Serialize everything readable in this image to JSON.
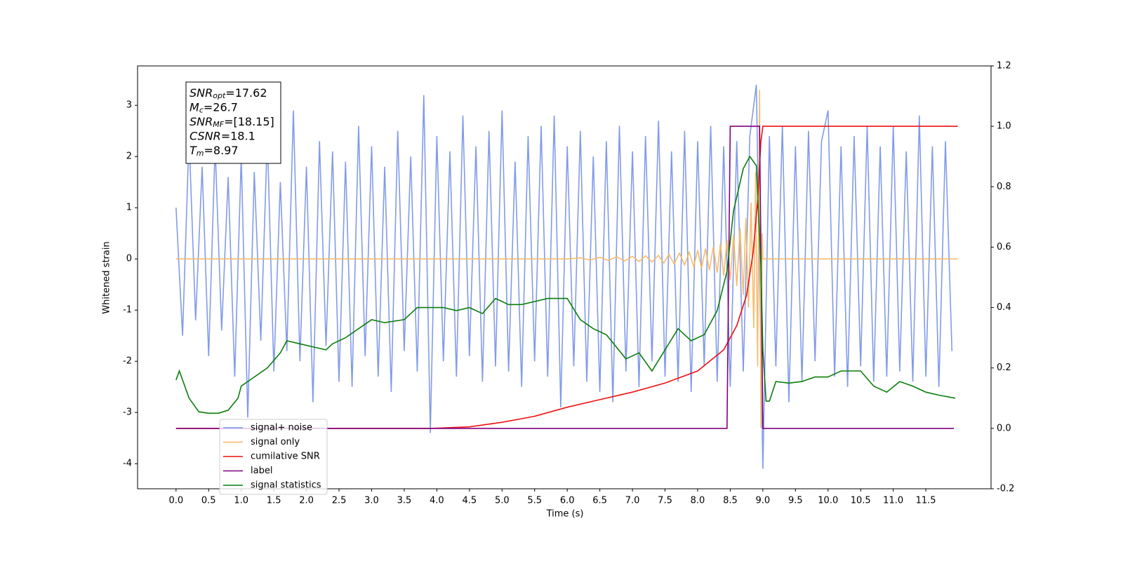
{
  "chart_data": {
    "type": "line",
    "xlabel": "Time (s)",
    "ylabel": "Whitened strain",
    "xlim": [
      -0.59,
      12.5
    ],
    "ylim": [
      -4.49,
      3.77
    ],
    "y2lim": [
      -0.2,
      1.2
    ],
    "xticks": [
      {
        "value": 0,
        "label": "0.0"
      },
      0.5,
      {
        "value": 1,
        "label": "1.0"
      },
      1.5,
      {
        "value": 2,
        "label": "2.0"
      },
      2.5,
      {
        "value": 3,
        "label": "3.0"
      },
      3.5,
      {
        "value": 4,
        "label": "4.0"
      },
      4.5,
      {
        "value": 5,
        "label": "5.0"
      },
      5.5,
      {
        "value": 6,
        "label": "6.0"
      },
      6.5,
      {
        "value": 7,
        "label": "7.0"
      },
      7.5,
      {
        "value": 8,
        "label": "8.0"
      },
      8.5,
      {
        "value": 9,
        "label": "9.0"
      },
      9.5,
      {
        "value": 10,
        "label": "10.0"
      },
      10.5,
      {
        "value": 11,
        "label": "11.0"
      },
      11.5
    ],
    "yticks": [
      -4,
      -3,
      -2,
      -1,
      0,
      1,
      2,
      3
    ],
    "y2ticks": [
      -0.2,
      {
        "value": 0,
        "label": "0.0"
      },
      0.2,
      0.4,
      0.6,
      0.8,
      {
        "value": 1,
        "label": "1.0"
      },
      1.2
    ],
    "grid": false,
    "annotation": [
      {
        "text": "SNR",
        "sub": "opt",
        "rest": "=17.62"
      },
      {
        "text": "M",
        "sub": "c",
        "rest": "=26.7"
      },
      {
        "text": "SNR",
        "sub": "MF",
        "rest": "=[18.15]"
      },
      {
        "text": "CSNR",
        "rest": "=18.1"
      },
      {
        "text": "T",
        "sub": "m",
        "rest": "=8.97"
      }
    ],
    "series": [
      {
        "name": "signal+ noise",
        "color": "#7b96e8",
        "axis": "y",
        "x": [
          0.0,
          0.1,
          0.2,
          0.3,
          0.4,
          0.5,
          0.6,
          0.7,
          0.8,
          0.9,
          1.0,
          1.1,
          1.2,
          1.3,
          1.4,
          1.5,
          1.6,
          1.7,
          1.8,
          1.9,
          2.0,
          2.1,
          2.2,
          2.3,
          2.4,
          2.5,
          2.6,
          2.7,
          2.8,
          2.9,
          3.0,
          3.1,
          3.2,
          3.3,
          3.4,
          3.5,
          3.6,
          3.7,
          3.8,
          3.9,
          4.0,
          4.1,
          4.2,
          4.3,
          4.4,
          4.5,
          4.6,
          4.7,
          4.8,
          4.9,
          5.0,
          5.1,
          5.2,
          5.3,
          5.4,
          5.5,
          5.6,
          5.7,
          5.8,
          5.9,
          6.0,
          6.1,
          6.2,
          6.3,
          6.4,
          6.5,
          6.6,
          6.7,
          6.8,
          6.9,
          7.0,
          7.1,
          7.2,
          7.3,
          7.4,
          7.5,
          7.6,
          7.7,
          7.8,
          7.9,
          8.0,
          8.1,
          8.2,
          8.3,
          8.4,
          8.5,
          8.6,
          8.7,
          8.8,
          8.9,
          9.0,
          9.1,
          9.2,
          9.3,
          9.4,
          9.5,
          9.6,
          9.7,
          9.8,
          9.9,
          10.0,
          10.1,
          10.2,
          10.3,
          10.4,
          10.5,
          10.6,
          10.7,
          10.8,
          10.9,
          11.0,
          11.1,
          11.2,
          11.3,
          11.4,
          11.5,
          11.6,
          11.7,
          11.8,
          11.9
        ],
        "values": [
          1.0,
          -1.5,
          2.4,
          -1.2,
          1.8,
          -1.9,
          2.2,
          -1.4,
          1.6,
          -2.3,
          2.0,
          -3.1,
          1.7,
          -1.6,
          2.4,
          -2.2,
          1.5,
          -1.8,
          2.9,
          -2.0,
          1.8,
          -2.8,
          2.3,
          -1.7,
          2.1,
          -2.4,
          1.9,
          -2.5,
          2.6,
          -1.9,
          2.2,
          -2.3,
          1.8,
          -2.6,
          2.5,
          -1.8,
          2.0,
          -2.2,
          3.2,
          -3.4,
          2.4,
          -2.0,
          2.1,
          -2.3,
          2.8,
          -1.9,
          2.2,
          -2.4,
          2.5,
          -2.1,
          2.9,
          -2.2,
          1.9,
          -2.5,
          2.4,
          -2.0,
          2.6,
          -2.3,
          2.8,
          -2.9,
          2.2,
          -2.1,
          2.5,
          -2.4,
          2.0,
          -2.6,
          2.3,
          -2.8,
          2.6,
          -2.2,
          2.1,
          -2.5,
          2.4,
          -2.0,
          2.7,
          -2.3,
          2.1,
          -2.4,
          2.5,
          -2.6,
          2.3,
          -2.1,
          2.6,
          -2.4,
          2.2,
          -2.5,
          2.3,
          -2.2,
          2.4,
          3.4,
          -4.1,
          2.4,
          -2.1,
          2.6,
          -2.8,
          2.2,
          -2.4,
          2.5,
          -2.0,
          2.3,
          2.9,
          -2.3,
          2.2,
          -2.5,
          2.4,
          -2.1,
          2.6,
          -2.4,
          2.2,
          -2.3,
          2.6,
          -2.2,
          2.1,
          -2.4,
          2.8,
          -2.3,
          2.2,
          -2.5,
          2.3,
          -1.8
        ]
      },
      {
        "name": "signal only",
        "color": "#f5b865",
        "axis": "y",
        "x": [
          0,
          6.0,
          6.2,
          6.35,
          6.5,
          6.63,
          6.76,
          6.88,
          7.0,
          7.1,
          7.2,
          7.3,
          7.4,
          7.48,
          7.56,
          7.64,
          7.72,
          7.8,
          7.87,
          7.94,
          8.0,
          8.06,
          8.12,
          8.18,
          8.24,
          8.3,
          8.35,
          8.4,
          8.45,
          8.5,
          8.55,
          8.6,
          8.65,
          8.7,
          8.74,
          8.78,
          8.82,
          8.86,
          8.89,
          8.92,
          8.95,
          8.97,
          8.99,
          9.0,
          11.99
        ],
        "values": [
          0,
          0,
          0.02,
          -0.02,
          0.03,
          -0.03,
          0.04,
          -0.04,
          0.05,
          -0.05,
          0.06,
          -0.06,
          0.07,
          -0.08,
          0.09,
          -0.1,
          0.11,
          -0.12,
          0.13,
          -0.15,
          0.17,
          -0.18,
          0.2,
          -0.22,
          0.24,
          -0.27,
          0.3,
          -0.33,
          0.37,
          -0.42,
          0.47,
          -0.53,
          0.6,
          -0.7,
          0.8,
          -0.95,
          1.1,
          -1.35,
          1.7,
          -2.1,
          3.3,
          -3.3,
          0.5,
          0,
          0
        ]
      },
      {
        "name": "cumilative SNR",
        "color": "#ee1111",
        "axis": "y2",
        "x": [
          0,
          3.9,
          4.5,
          5.0,
          5.5,
          6.0,
          6.5,
          7.0,
          7.5,
          8.0,
          8.4,
          8.6,
          8.75,
          8.85,
          8.92,
          8.97,
          9.0,
          11.99
        ],
        "values": [
          0,
          0,
          0.005,
          0.02,
          0.04,
          0.07,
          0.095,
          0.12,
          0.15,
          0.19,
          0.26,
          0.34,
          0.44,
          0.58,
          0.75,
          0.95,
          1.0,
          1.0
        ]
      },
      {
        "name": "label",
        "color": "#800080",
        "axis": "y2",
        "x": [
          0,
          8.45,
          8.5,
          8.95,
          9.0,
          11.93
        ],
        "values": [
          0,
          0,
          1,
          1,
          0,
          0
        ]
      },
      {
        "name": "signal statistics",
        "color": "#0a7d0a",
        "axis": "y2",
        "x": [
          0,
          0.05,
          0.2,
          0.35,
          0.5,
          0.65,
          0.8,
          0.95,
          1.0,
          1.2,
          1.4,
          1.6,
          1.7,
          1.9,
          2.1,
          2.3,
          2.4,
          2.6,
          2.8,
          3.0,
          3.2,
          3.5,
          3.7,
          3.9,
          4.1,
          4.3,
          4.5,
          4.7,
          4.9,
          5.1,
          5.3,
          5.5,
          5.7,
          6.0,
          6.2,
          6.4,
          6.6,
          6.9,
          7.1,
          7.3,
          7.5,
          7.7,
          7.9,
          8.1,
          8.3,
          8.45,
          8.55,
          8.7,
          8.8,
          8.9,
          8.97,
          9.0,
          9.05,
          9.1,
          9.2,
          9.4,
          9.6,
          9.8,
          10.0,
          10.2,
          10.5,
          10.7,
          10.9,
          11.1,
          11.3,
          11.5,
          11.7,
          11.95
        ],
        "values": [
          0.16,
          0.19,
          0.1,
          0.055,
          0.05,
          0.05,
          0.06,
          0.1,
          0.14,
          0.17,
          0.2,
          0.25,
          0.29,
          0.28,
          0.27,
          0.26,
          0.28,
          0.3,
          0.33,
          0.36,
          0.35,
          0.36,
          0.4,
          0.4,
          0.4,
          0.39,
          0.4,
          0.38,
          0.43,
          0.41,
          0.41,
          0.42,
          0.43,
          0.43,
          0.36,
          0.33,
          0.31,
          0.23,
          0.25,
          0.19,
          0.26,
          0.33,
          0.29,
          0.31,
          0.39,
          0.52,
          0.72,
          0.86,
          0.9,
          0.87,
          0.54,
          0.26,
          0.09,
          0.09,
          0.155,
          0.15,
          0.155,
          0.17,
          0.17,
          0.19,
          0.19,
          0.14,
          0.12,
          0.155,
          0.14,
          0.12,
          0.11,
          0.1
        ]
      }
    ]
  }
}
